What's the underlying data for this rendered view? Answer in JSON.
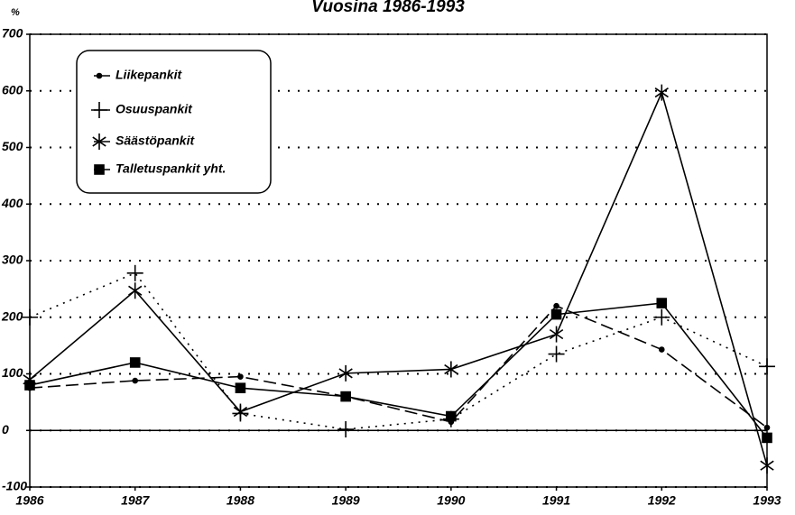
{
  "chart_data": {
    "type": "line",
    "title": "Vuosina 1986-1993",
    "ylabel": "%",
    "x": [
      1986,
      1987,
      1988,
      1989,
      1990,
      1991,
      1992,
      1993
    ],
    "xlim": [
      1986,
      1993
    ],
    "xticks": [
      1986,
      1987,
      1988,
      1989,
      1990,
      1991,
      1992,
      1993
    ],
    "ylim": [
      -100,
      700
    ],
    "yticks": [
      -100,
      0,
      100,
      200,
      300,
      400,
      500,
      600,
      700
    ],
    "grid": true,
    "legend": "upper left",
    "series": [
      {
        "name": "Liikepankit",
        "color": "#000",
        "dash": "14 6",
        "marker": "dot",
        "values": [
          75,
          88,
          95,
          60,
          15,
          220,
          143,
          5
        ]
      },
      {
        "name": "Osuuspankit",
        "color": "#000",
        "dash": "2 6",
        "marker": "plus",
        "values": [
          200,
          278,
          30,
          2,
          20,
          135,
          200,
          113
        ]
      },
      {
        "name": "Säästöpankit",
        "color": "#000",
        "dash": "",
        "marker": "star",
        "values": [
          90,
          247,
          33,
          101,
          108,
          170,
          597,
          -62
        ]
      },
      {
        "name": "Talletuspankit yht.",
        "color": "#000",
        "dash": "",
        "marker": "square",
        "values": [
          80,
          120,
          75,
          60,
          25,
          205,
          225,
          -13
        ]
      }
    ]
  }
}
